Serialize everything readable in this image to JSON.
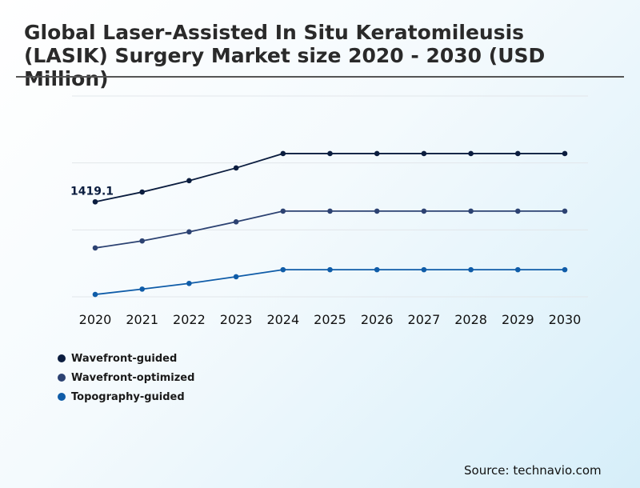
{
  "title": "Global Laser-Assisted In Situ Keratomileusis (LASIK) Surgery Market size 2020 - 2030 (USD Million)",
  "source": "Source: technavio.com",
  "chart_data": {
    "type": "line",
    "x": [
      "2020",
      "2021",
      "2022",
      "2023",
      "2024",
      "2025",
      "2026",
      "2027",
      "2028",
      "2029",
      "2030"
    ],
    "ylim": [
      0,
      3000
    ],
    "grid": true,
    "legend_position": "bottom-left",
    "series": [
      {
        "name": "Wavefront-guided",
        "color": "#0b1d3f",
        "values": [
          1419.1,
          1565,
          1735,
          1925,
          2140,
          2140,
          2140,
          2140,
          2140,
          2140,
          2140
        ],
        "data_label": "1419.1"
      },
      {
        "name": "Wavefront-optimized",
        "color": "#2c4272",
        "values": [
          730,
          835,
          970,
          1120,
          1280,
          1280,
          1280,
          1280,
          1280,
          1280,
          1280
        ]
      },
      {
        "name": "Topography-guided",
        "color": "#0f5ca8",
        "values": [
          35,
          115,
          200,
          300,
          405,
          405,
          405,
          405,
          405,
          405,
          405
        ]
      }
    ]
  }
}
